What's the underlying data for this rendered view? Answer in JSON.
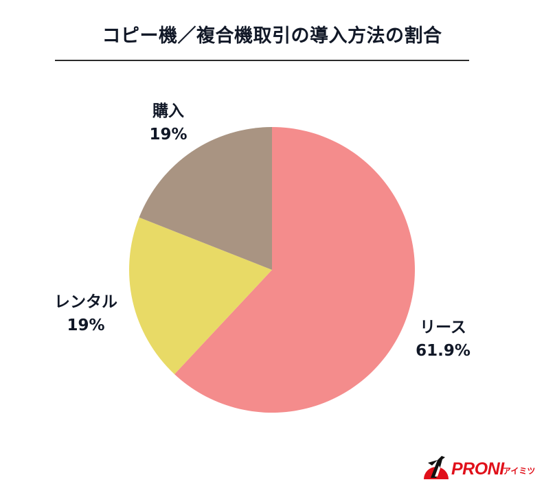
{
  "title": "コピー機／複合機取引の導入方法の割合",
  "chart_data": {
    "type": "pie",
    "title": "コピー機／複合機取引の導入方法の割合",
    "categories": [
      "リース",
      "レンタル",
      "購入"
    ],
    "values": [
      61.9,
      19,
      19
    ],
    "value_labels": [
      "61.9%",
      "19%",
      "19%"
    ],
    "colors": [
      "#f48c8c",
      "#e8da66",
      "#a99482"
    ],
    "start_angle": "12 o'clock, clockwise",
    "legend": "none (direct labels)"
  },
  "labels": {
    "lease": {
      "name": "リース",
      "value": "61.9%"
    },
    "rental": {
      "name": "レンタル",
      "value": "19%"
    },
    "purchase": {
      "name": "購入",
      "value": "19%"
    }
  },
  "logo": {
    "brand": "PRONI",
    "sub": "アイミツ",
    "color": "#e0101a"
  }
}
